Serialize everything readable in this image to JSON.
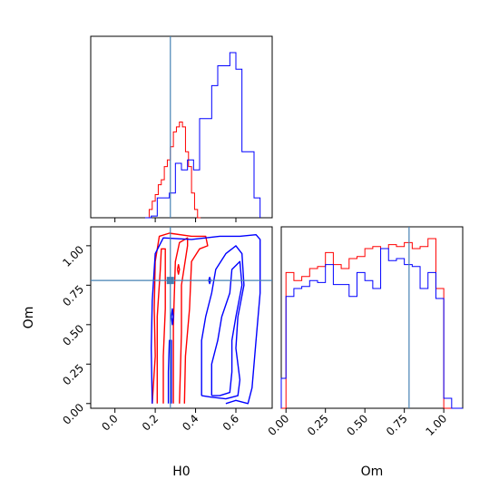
{
  "chart_data": [
    {
      "type": "histogram",
      "panel": "H0 marginal",
      "x_range": [
        -0.12,
        0.78
      ],
      "truth": 0.275,
      "colors": {
        "red": "#ff0000",
        "blue": "#0000ff",
        "truth": "#4682b4"
      },
      "series": [
        {
          "color": "red",
          "bin_edges": [
            0.15,
            0.17,
            0.185,
            0.2,
            0.215,
            0.23,
            0.245,
            0.26,
            0.275,
            0.29,
            0.305,
            0.32,
            0.335,
            0.35,
            0.365,
            0.38,
            0.395,
            0.41,
            0.425
          ],
          "counts": [
            0,
            0.05,
            0.1,
            0.14,
            0.2,
            0.23,
            0.31,
            0.35,
            0.43,
            0.52,
            0.55,
            0.58,
            0.55,
            0.4,
            0.31,
            0.15,
            0.05,
            0
          ]
        },
        {
          "color": "blue",
          "bin_edges": [
            0.15,
            0.18,
            0.21,
            0.24,
            0.27,
            0.3,
            0.33,
            0.36,
            0.39,
            0.42,
            0.45,
            0.48,
            0.51,
            0.54,
            0.57,
            0.6,
            0.63,
            0.66,
            0.69,
            0.72
          ],
          "counts": [
            0,
            0.01,
            0.12,
            0.12,
            0.15,
            0.33,
            0.29,
            0.35,
            0.29,
            0.6,
            0.6,
            0.8,
            0.92,
            0.92,
            1.0,
            0.9,
            0.4,
            0.4,
            0.12
          ]
        }
      ]
    },
    {
      "type": "contour",
      "panel": "H0 vs Om",
      "x": "H0",
      "y": "Om",
      "x_range": [
        -0.12,
        0.78
      ],
      "y_range": [
        -0.03,
        1.12
      ],
      "truth": [
        0.275,
        0.78
      ],
      "xticks": [
        "0.0",
        "0.2",
        "0.4",
        "0.6"
      ],
      "yticks": [
        "0.00",
        "0.25",
        "0.50",
        "0.75",
        "1.00"
      ],
      "xlabel": "H0",
      "ylabel": "Om",
      "series": [
        {
          "color": "red",
          "contours": [
            [
              [
                0.185,
                0.0
              ],
              [
                0.2,
                0.3
              ],
              [
                0.195,
                0.6
              ],
              [
                0.2,
                0.9
              ],
              [
                0.22,
                1.06
              ],
              [
                0.27,
                1.08
              ],
              [
                0.38,
                1.06
              ],
              [
                0.45,
                1.06
              ],
              [
                0.46,
                1.0
              ],
              [
                0.42,
                0.98
              ],
              [
                0.38,
                0.9
              ],
              [
                0.37,
                0.6
              ],
              [
                0.35,
                0.3
              ],
              [
                0.345,
                0.0
              ]
            ],
            [
              [
                0.21,
                0.0
              ],
              [
                0.21,
                0.55
              ],
              [
                0.225,
                0.85
              ],
              [
                0.23,
                0.98
              ],
              [
                0.25,
                0.98
              ],
              [
                0.25,
                0.6
              ],
              [
                0.24,
                0.3
              ],
              [
                0.24,
                0.0
              ]
            ],
            [
              [
                0.29,
                0.0
              ],
              [
                0.29,
                0.5
              ],
              [
                0.3,
                0.9
              ],
              [
                0.32,
                1.02
              ],
              [
                0.36,
                1.05
              ],
              [
                0.36,
                1.0
              ],
              [
                0.33,
                0.75
              ],
              [
                0.33,
                0.45
              ],
              [
                0.32,
                0.0
              ]
            ],
            [
              [
                0.31,
                0.85
              ],
              [
                0.315,
                0.82
              ],
              [
                0.32,
                0.85
              ],
              [
                0.315,
                0.88
              ],
              [
                0.31,
                0.85
              ]
            ]
          ]
        },
        {
          "color": "blue",
          "contours": [
            [
              [
                0.185,
                0.0
              ],
              [
                0.18,
                0.35
              ],
              [
                0.185,
                0.65
              ],
              [
                0.2,
                0.95
              ],
              [
                0.24,
                1.05
              ],
              [
                0.38,
                1.04
              ],
              [
                0.45,
                1.05
              ],
              [
                0.52,
                1.06
              ],
              [
                0.62,
                1.06
              ],
              [
                0.7,
                1.07
              ],
              [
                0.72,
                1.04
              ],
              [
                0.72,
                0.7
              ],
              [
                0.7,
                0.4
              ],
              [
                0.68,
                0.1
              ],
              [
                0.66,
                0.0
              ],
              [
                0.6,
                0.02
              ],
              [
                0.55,
                0.0
              ]
            ],
            [
              [
                0.43,
                0.05
              ],
              [
                0.43,
                0.2
              ],
              [
                0.43,
                0.4
              ],
              [
                0.45,
                0.55
              ],
              [
                0.48,
                0.7
              ],
              [
                0.5,
                0.85
              ],
              [
                0.55,
                0.95
              ],
              [
                0.6,
                1.0
              ],
              [
                0.63,
                0.95
              ],
              [
                0.64,
                0.75
              ],
              [
                0.61,
                0.55
              ],
              [
                0.6,
                0.35
              ],
              [
                0.62,
                0.15
              ],
              [
                0.61,
                0.05
              ],
              [
                0.55,
                0.03
              ],
              [
                0.48,
                0.04
              ],
              [
                0.43,
                0.05
              ]
            ],
            [
              [
                0.48,
                0.05
              ],
              [
                0.48,
                0.25
              ],
              [
                0.51,
                0.4
              ],
              [
                0.53,
                0.55
              ],
              [
                0.57,
                0.7
              ],
              [
                0.58,
                0.85
              ],
              [
                0.62,
                0.9
              ],
              [
                0.63,
                0.75
              ],
              [
                0.6,
                0.55
              ],
              [
                0.58,
                0.4
              ],
              [
                0.58,
                0.2
              ],
              [
                0.57,
                0.07
              ],
              [
                0.52,
                0.05
              ],
              [
                0.48,
                0.05
              ]
            ],
            [
              [
                0.265,
                0.0
              ],
              [
                0.265,
                0.2
              ],
              [
                0.27,
                0.4
              ],
              [
                0.28,
                0.4
              ],
              [
                0.28,
                0.2
              ],
              [
                0.28,
                0.0
              ]
            ],
            [
              [
                0.465,
                0.78
              ],
              [
                0.47,
                0.76
              ],
              [
                0.475,
                0.78
              ],
              [
                0.47,
                0.8
              ],
              [
                0.465,
                0.78
              ]
            ],
            [
              [
                0.28,
                0.55
              ],
              [
                0.285,
                0.5
              ],
              [
                0.29,
                0.55
              ],
              [
                0.285,
                0.6
              ],
              [
                0.28,
                0.55
              ]
            ]
          ]
        }
      ]
    },
    {
      "type": "histogram",
      "panel": "Om marginal",
      "x_range": [
        -0.03,
        1.12
      ],
      "xticks": [
        "0.00",
        "0.25",
        "0.50",
        "0.75",
        "1.00"
      ],
      "xlabel": "Om",
      "truth": 0.78,
      "series": [
        {
          "color": "red",
          "bin_edges": [
            -0.03,
            0.0,
            0.05,
            0.1,
            0.15,
            0.2,
            0.25,
            0.3,
            0.35,
            0.4,
            0.45,
            0.5,
            0.55,
            0.6,
            0.65,
            0.7,
            0.75,
            0.8,
            0.85,
            0.9,
            0.95,
            1.0,
            1.05,
            1.12
          ],
          "counts": [
            0,
            0.68,
            0.64,
            0.66,
            0.7,
            0.71,
            0.78,
            0.72,
            0.7,
            0.75,
            0.76,
            0.8,
            0.81,
            0.8,
            0.82,
            0.81,
            0.83,
            0.8,
            0.81,
            0.85,
            0.6,
            0,
            0
          ]
        },
        {
          "color": "blue",
          "bin_edges": [
            -0.03,
            0.0,
            0.05,
            0.1,
            0.15,
            0.2,
            0.25,
            0.3,
            0.35,
            0.4,
            0.45,
            0.5,
            0.55,
            0.6,
            0.65,
            0.7,
            0.75,
            0.8,
            0.85,
            0.9,
            0.95,
            1.0,
            1.05,
            1.12
          ],
          "counts": [
            0.15,
            0.56,
            0.6,
            0.61,
            0.64,
            0.63,
            0.72,
            0.62,
            0.62,
            0.56,
            0.68,
            0.64,
            0.6,
            0.8,
            0.74,
            0.75,
            0.72,
            0.71,
            0.6,
            0.68,
            0.55,
            0.05,
            0
          ]
        }
      ]
    }
  ]
}
